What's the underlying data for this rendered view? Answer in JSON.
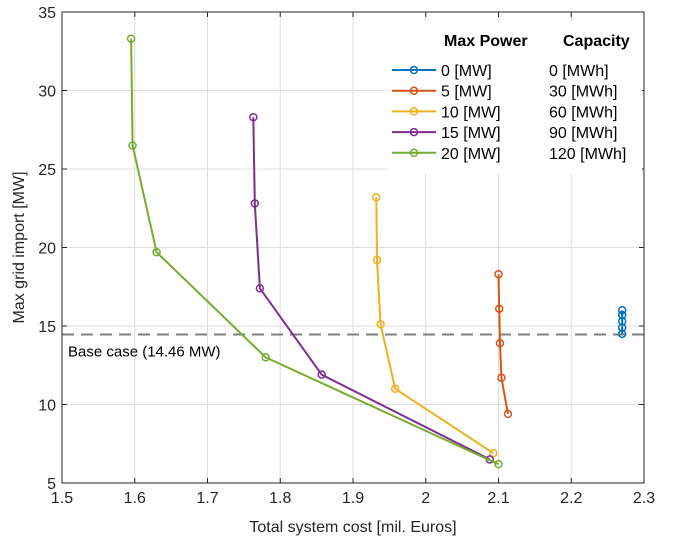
{
  "chart_data": {
    "type": "line",
    "xlabel": "Total system cost [mil. Euros]",
    "ylabel": "Max grid import [MW]",
    "xlim": [
      1.5,
      2.3
    ],
    "ylim": [
      5,
      35
    ],
    "xticks": [
      "1.5",
      "1.6",
      "1.7",
      "1.8",
      "1.9",
      "2",
      "2.1",
      "2.2",
      "2.3"
    ],
    "yticks": [
      "5",
      "10",
      "15",
      "20",
      "25",
      "30",
      "35"
    ],
    "grid": true,
    "legend": {
      "placement": "top-right",
      "header_power": "Max Power",
      "header_capacity": "Capacity"
    },
    "reference_line": {
      "y": 14.46,
      "label": "Base case (14.46 MW)",
      "style": "dashed",
      "color": "#7f7f7f"
    },
    "series": [
      {
        "name": "0 [MW]",
        "capacity": "0 [MWh]",
        "color": "#0072bd",
        "x": [
          2.27,
          2.27,
          2.27,
          2.27,
          2.27
        ],
        "y": [
          14.5,
          14.9,
          15.3,
          15.7,
          16.0
        ]
      },
      {
        "name": "5 [MW]",
        "capacity": "30 [MWh]",
        "color": "#d95319",
        "x": [
          2.1,
          2.101,
          2.102,
          2.104,
          2.113
        ],
        "y": [
          18.3,
          16.1,
          13.9,
          11.7,
          9.4
        ]
      },
      {
        "name": "10 [MW]",
        "capacity": "60 [MWh]",
        "color": "#edb120",
        "x": [
          1.932,
          1.933,
          1.938,
          1.958,
          2.093
        ],
        "y": [
          23.2,
          19.2,
          15.1,
          11.0,
          6.9
        ]
      },
      {
        "name": "15 [MW]",
        "capacity": "90 [MWh]",
        "color": "#7e2f8e",
        "x": [
          1.763,
          1.765,
          1.772,
          1.857,
          2.088
        ],
        "y": [
          28.3,
          22.8,
          17.4,
          11.9,
          6.5
        ]
      },
      {
        "name": "20 [MW]",
        "capacity": "120 [MWh]",
        "color": "#77ac30",
        "x": [
          1.595,
          1.597,
          1.63,
          1.78,
          2.1
        ],
        "y": [
          33.3,
          26.5,
          19.7,
          13.0,
          6.2
        ]
      }
    ]
  }
}
